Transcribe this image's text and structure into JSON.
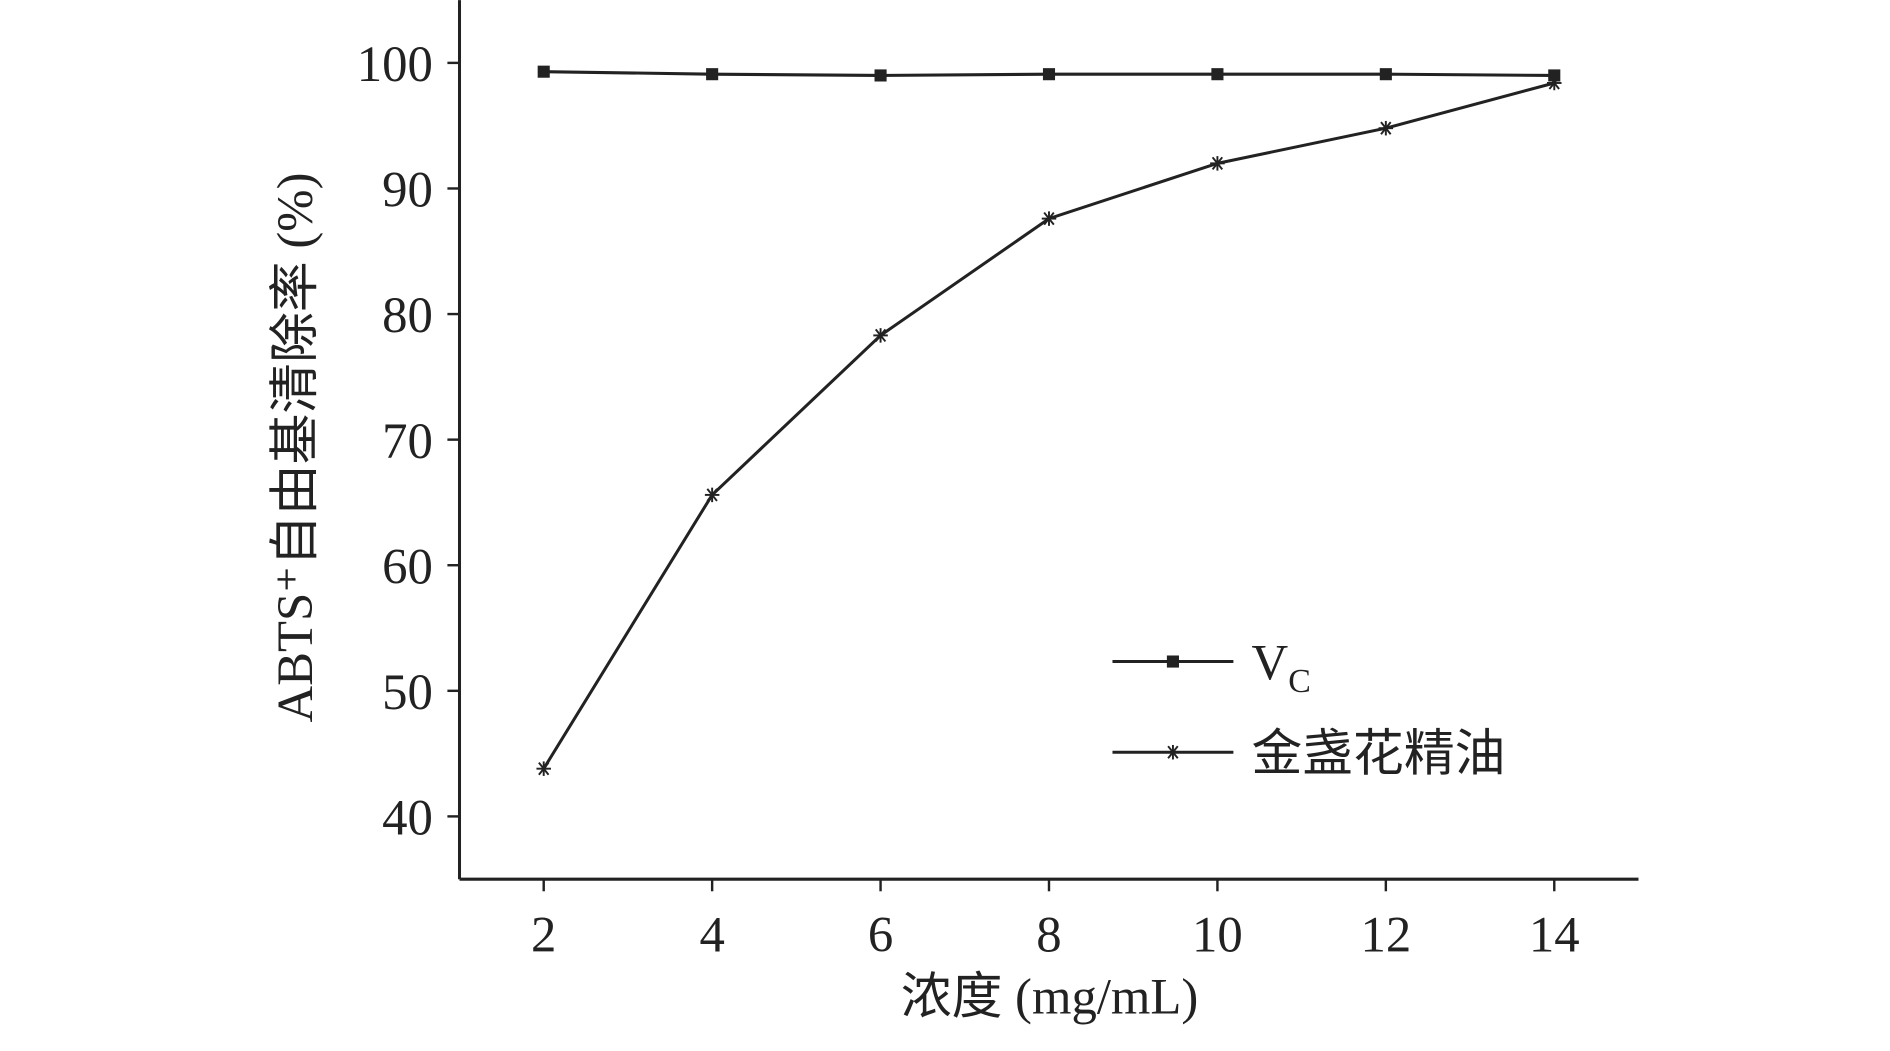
{
  "chart_data": {
    "type": "line",
    "x": [
      2,
      4,
      6,
      8,
      10,
      12,
      14
    ],
    "xlim": [
      1,
      15
    ],
    "xticks": [
      2,
      4,
      6,
      8,
      10,
      12,
      14
    ],
    "ylim": [
      35,
      105
    ],
    "yticks": [
      40,
      50,
      60,
      70,
      80,
      90,
      100
    ],
    "x_label": "浓度 (mg/mL)",
    "y_label": "ABTS⁺自由基清除率 (%)",
    "legend": "lower right",
    "series": [
      {
        "name": "VC",
        "color": "#222222",
        "marker": "square",
        "values": [
          99.3,
          99.1,
          99.0,
          99.1,
          99.1,
          99.1,
          99.0
        ]
      },
      {
        "name": "金盏花精油",
        "color": "#222222",
        "marker": "asterisk",
        "values": [
          43.8,
          65.6,
          78.3,
          87.6,
          92.0,
          94.8,
          98.4
        ]
      }
    ]
  }
}
